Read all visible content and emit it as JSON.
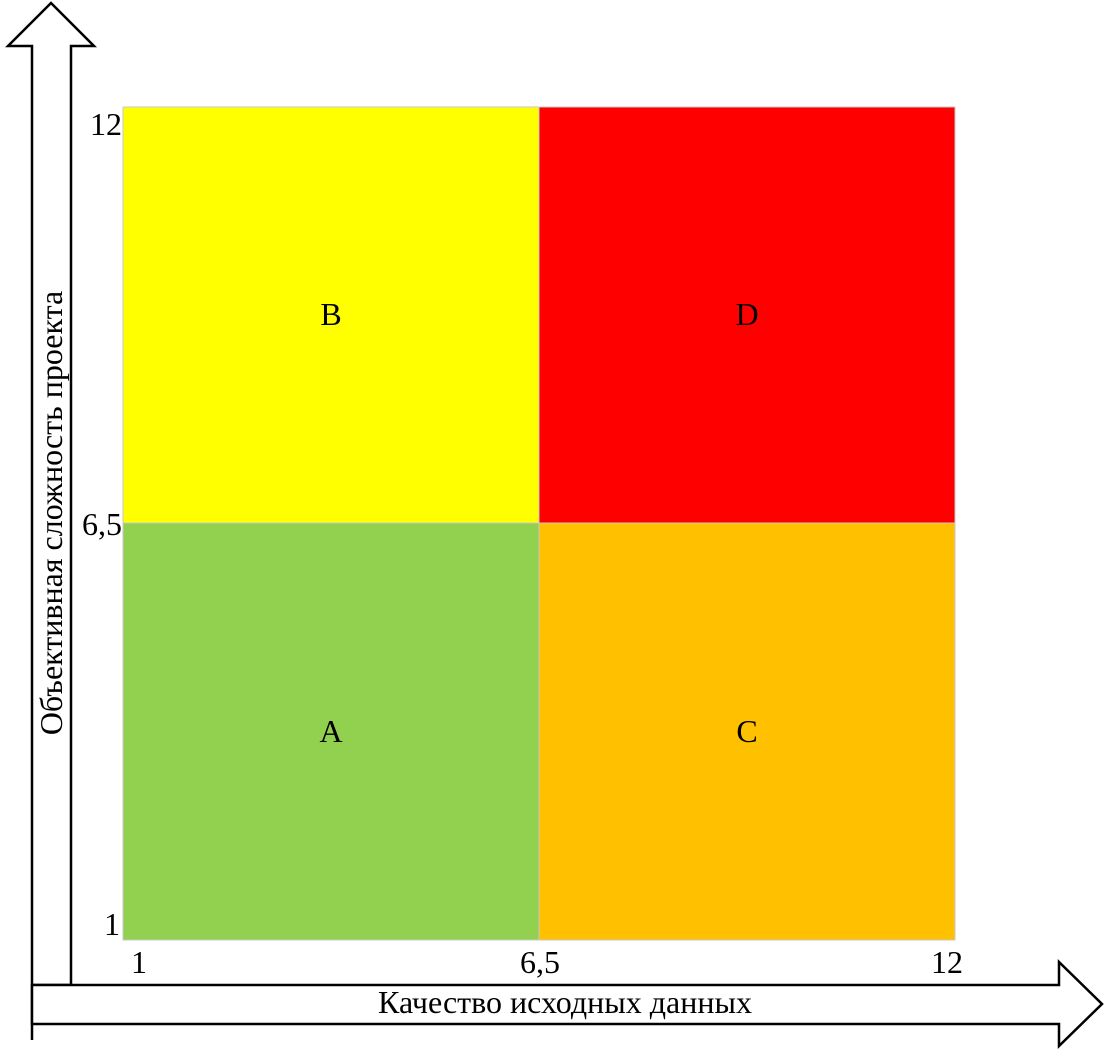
{
  "axes": {
    "x_label": "Качество исходных данных",
    "y_label": "Объективная сложность проекта",
    "x_ticks": [
      "1",
      "6,5",
      "12"
    ],
    "y_ticks": [
      "12",
      "6,5",
      "1"
    ]
  },
  "quadrants": [
    {
      "id": "A",
      "label": "A",
      "color": "#92D050"
    },
    {
      "id": "B",
      "label": "B",
      "color": "#FFFF00"
    },
    {
      "id": "C",
      "label": "C",
      "color": "#FFC000"
    },
    {
      "id": "D",
      "label": "D",
      "color": "#FF0000"
    }
  ]
}
